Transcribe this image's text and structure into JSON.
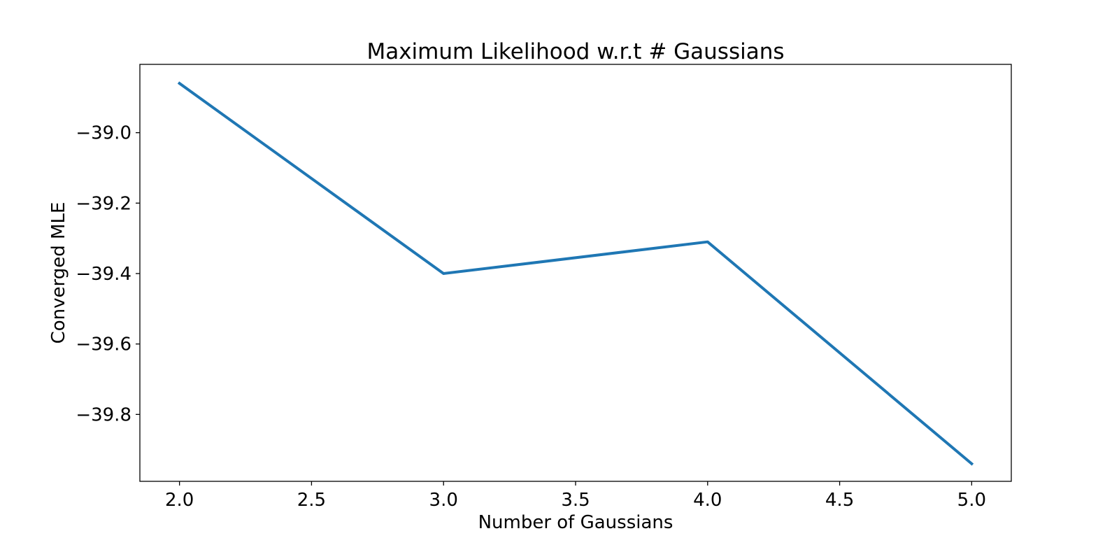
{
  "chart_data": {
    "type": "line",
    "title": "Maximum Likelihood w.r.t # Gaussians",
    "xlabel": "Number of Gaussians",
    "ylabel": "Converged MLE",
    "x": [
      2.0,
      3.0,
      4.0,
      5.0
    ],
    "series": [
      {
        "values": [
          -38.86,
          -39.4,
          -39.31,
          -39.94
        ],
        "color": "#1f77b4"
      }
    ],
    "xlim": [
      1.85,
      5.15
    ],
    "ylim": [
      -39.99,
      -38.806
    ],
    "xticks": [
      "2.0",
      "2.5",
      "3.0",
      "3.5",
      "4.0",
      "4.5",
      "5.0"
    ],
    "yticks": [
      "−39.0",
      "−39.2",
      "−39.4",
      "−39.6",
      "−39.8"
    ],
    "xtick_values": [
      2.0,
      2.5,
      3.0,
      3.5,
      4.0,
      4.5,
      5.0
    ],
    "ytick_values": [
      -39.0,
      -39.2,
      -39.4,
      -39.6,
      -39.8
    ],
    "grid": false,
    "legend": "none"
  }
}
